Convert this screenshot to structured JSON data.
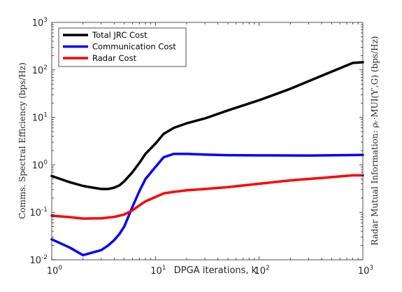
{
  "chart_data": {
    "type": "line",
    "xlabel": "DPGA iterations, k",
    "ylabel_left": "Comms. Spectral Efficiency (bps/Hz)",
    "ylabel_right": "Radar Mutual Information: ρᵣ·MUI(Y′,G) (bps/Hz)",
    "x_scale": "log",
    "y_scale": "log",
    "xlim": [
      1,
      1000
    ],
    "ylim": [
      0.01,
      1000
    ],
    "x_ticks": [
      {
        "value": 1,
        "base": "10",
        "exp": "0"
      },
      {
        "value": 10,
        "base": "10",
        "exp": "1"
      },
      {
        "value": 100,
        "base": "10",
        "exp": "2"
      },
      {
        "value": 1000,
        "base": "10",
        "exp": "3"
      }
    ],
    "y_ticks": [
      {
        "value": 0.01,
        "base": "10",
        "exp": "-2"
      },
      {
        "value": 0.1,
        "base": "10",
        "exp": "-1"
      },
      {
        "value": 1,
        "base": "10",
        "exp": "0"
      },
      {
        "value": 10,
        "base": "10",
        "exp": "1"
      },
      {
        "value": 100,
        "base": "10",
        "exp": "2"
      },
      {
        "value": 1000,
        "base": "10",
        "exp": "3"
      }
    ],
    "grid": false,
    "legend_position": "top-left",
    "series": [
      {
        "name": "Total JRC Cost",
        "color": "#000000",
        "x": [
          1,
          1.5,
          2,
          2.5,
          3,
          3.5,
          4,
          4.5,
          5,
          6,
          7,
          8,
          10,
          12,
          15,
          20,
          30,
          50,
          100,
          200,
          400,
          800,
          1000
        ],
        "y": [
          0.58,
          0.43,
          0.36,
          0.33,
          0.31,
          0.31,
          0.33,
          0.37,
          0.45,
          0.7,
          1.1,
          1.7,
          2.8,
          4.5,
          6.0,
          7.5,
          9.5,
          14,
          23,
          40,
          75,
          140,
          145
        ]
      },
      {
        "name": "Communication Cost",
        "color": "#0000ff",
        "x": [
          1,
          1.5,
          2,
          3,
          3.5,
          4,
          4.5,
          5,
          6,
          7,
          8,
          10,
          12,
          15,
          20,
          30,
          50,
          100,
          300,
          1000
        ],
        "y": [
          0.027,
          0.018,
          0.0125,
          0.016,
          0.02,
          0.026,
          0.035,
          0.05,
          0.13,
          0.28,
          0.5,
          0.9,
          1.45,
          1.7,
          1.7,
          1.65,
          1.6,
          1.58,
          1.57,
          1.62
        ]
      },
      {
        "name": "Radar Cost",
        "color": "#ff0000",
        "x": [
          1,
          1.5,
          2,
          3,
          4,
          5,
          6,
          7,
          8,
          10,
          12,
          15,
          20,
          30,
          50,
          100,
          200,
          400,
          800,
          1000
        ],
        "y": [
          0.085,
          0.079,
          0.074,
          0.075,
          0.08,
          0.09,
          0.11,
          0.14,
          0.17,
          0.21,
          0.25,
          0.27,
          0.29,
          0.31,
          0.34,
          0.4,
          0.47,
          0.53,
          0.6,
          0.6
        ]
      }
    ]
  }
}
